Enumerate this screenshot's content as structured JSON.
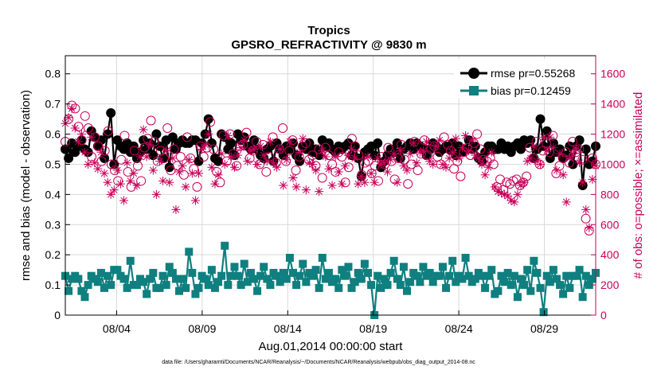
{
  "chart_data": {
    "type": "line",
    "title": "Tropics",
    "subtitle": "GPSRO_REFRACTIVITY @ 9830 m",
    "xlabel": "Aug.01,2014 00:00:00 start",
    "ylabel": "rmse and bias (model - observation)",
    "ylabel_right": "# of obs: o=possible; ×=assimilated",
    "xlim": [
      1.0,
      32.0
    ],
    "ylim": [
      0,
      0.86
    ],
    "ylim_right": [
      0,
      1720
    ],
    "x_ticks": [
      {
        "value": 4,
        "label": "08/04"
      },
      {
        "value": 9,
        "label": "08/09"
      },
      {
        "value": 14,
        "label": "08/14"
      },
      {
        "value": 19,
        "label": "08/19"
      },
      {
        "value": 24,
        "label": "08/24"
      },
      {
        "value": 29,
        "label": "08/29"
      }
    ],
    "y_ticks": [
      "0",
      "0.1",
      "0.2",
      "0.3",
      "0.4",
      "0.5",
      "0.6",
      "0.7",
      "0.8"
    ],
    "y_ticks_right": [
      "0",
      "200",
      "400",
      "600",
      "800",
      "1000",
      "1200",
      "1400",
      "1600"
    ],
    "grid": true,
    "legend_position": "top-right",
    "series": [
      {
        "name": "rmse pr=0.55268",
        "color": "#000000",
        "marker": "circle",
        "axis": "left",
        "values": [
          0.55,
          0.52,
          0.57,
          0.54,
          0.56,
          0.58,
          0.55,
          0.54,
          0.61,
          0.59,
          0.56,
          0.58,
          0.52,
          0.6,
          0.67,
          0.5,
          0.58,
          0.56,
          0.55,
          0.57,
          0.54,
          0.56,
          0.52,
          0.54,
          0.58,
          0.55,
          0.57,
          0.53,
          0.6,
          0.56,
          0.52,
          0.58,
          0.49,
          0.59,
          0.55,
          0.57,
          0.58,
          0.57,
          0.57,
          0.58,
          0.58,
          0.51,
          0.57,
          0.6,
          0.65,
          0.57,
          0.52,
          0.51,
          0.6,
          0.59,
          0.55,
          0.57,
          0.53,
          0.6,
          0.58,
          0.59,
          0.56,
          0.55,
          0.58,
          0.55,
          0.53,
          0.52,
          0.55,
          0.56,
          0.51,
          0.57,
          0.55,
          0.53,
          0.56,
          0.55,
          0.57,
          0.53,
          0.51,
          0.56,
          0.55,
          0.57,
          0.54,
          0.55,
          0.53,
          0.58,
          0.56,
          0.57,
          0.55,
          0.54,
          0.56,
          0.55,
          0.56,
          0.57,
          0.53,
          0.56,
          0.52,
          0.46,
          0.54,
          0.55,
          0.56,
          0.53,
          0.57,
          0.49,
          0.51,
          0.53,
          0.55,
          0.54,
          0.57,
          0.52,
          0.55,
          0.56,
          0.57,
          0.55,
          0.57,
          0.56,
          0.55,
          0.53,
          0.55,
          0.57,
          0.56,
          0.54,
          0.55,
          0.56,
          0.55,
          0.57,
          0.53,
          0.56,
          0.54,
          0.55,
          0.58,
          0.55,
          0.56,
          0.52,
          0.51,
          0.54,
          0.56,
          0.56,
          0.55,
          0.55,
          0.57,
          0.55,
          0.56,
          0.54,
          0.56,
          0.57,
          0.55,
          0.58,
          0.57,
          0.58,
          0.52,
          0.55,
          0.65,
          0.56,
          0.61,
          0.52,
          0.57,
          0.54,
          0.55,
          0.52,
          0.53,
          0.56,
          0.5,
          0.56,
          0.58,
          0.43,
          0.55,
          0.5,
          0.51,
          0.56
        ]
      },
      {
        "name": "bias pr=0.12459",
        "color": "#0f7f7f",
        "marker": "square",
        "axis": "left",
        "values": [
          0.13,
          0.08,
          0.12,
          0.13,
          0.12,
          0.08,
          0.06,
          0.1,
          0.13,
          0.12,
          0.11,
          0.14,
          0.09,
          0.13,
          0.1,
          0.15,
          0.15,
          0.13,
          0.12,
          0.09,
          0.18,
          0.1,
          0.1,
          0.12,
          0.11,
          0.07,
          0.12,
          0.14,
          0.09,
          0.09,
          0.13,
          0.1,
          0.16,
          0.14,
          0.12,
          0.08,
          0.12,
          0.09,
          0.21,
          0.14,
          0.07,
          0.09,
          0.13,
          0.12,
          0.1,
          0.15,
          0.09,
          0.11,
          0.13,
          0.23,
          0.1,
          0.13,
          0.16,
          0.13,
          0.1,
          0.17,
          0.11,
          0.14,
          0.12,
          0.08,
          0.13,
          0.16,
          0.12,
          0.1,
          0.14,
          0.13,
          0.11,
          0.14,
          0.12,
          0.19,
          0.14,
          0.1,
          0.13,
          0.17,
          0.11,
          0.14,
          0.13,
          0.15,
          0.09,
          0.19,
          0.12,
          0.14,
          0.11,
          0.12,
          0.09,
          0.15,
          0.13,
          0.16,
          0.09,
          0.11,
          0.14,
          0.12,
          0.17,
          0.14,
          0.1,
          0.0,
          0.13,
          0.09,
          0.12,
          0.1,
          0.14,
          0.18,
          0.12,
          0.1,
          0.16,
          0.08,
          0.11,
          0.14,
          0.13,
          0.11,
          0.16,
          0.13,
          0.14,
          0.11,
          0.13,
          0.13,
          0.16,
          0.09,
          0.13,
          0.18,
          0.11,
          0.13,
          0.12,
          0.19,
          0.13,
          0.11,
          0.12,
          0.14,
          0.13,
          0.09,
          0.13,
          0.15,
          0.07,
          0.08,
          0.13,
          0.11,
          0.14,
          0.1,
          0.13,
          0.06,
          0.12,
          0.1,
          0.15,
          0.08,
          0.18,
          0.14,
          0.09,
          0.01,
          0.13,
          0.11,
          0.15,
          0.12,
          0.1,
          0.07,
          0.13,
          0.09,
          0.13,
          0.13,
          0.15,
          0.06,
          0.13,
          0.1,
          0.12,
          0.14
        ]
      },
      {
        "name": "# obs possible",
        "color": "#c8005a",
        "marker": "open-circle",
        "axis": "right",
        "values": [
          1150,
          1300,
          1390,
          1370,
          1250,
          1160,
          1320,
          1240,
          1050,
          1180,
          1120,
          1020,
          1090,
          1220,
          1000,
          960,
          890,
          1030,
          1190,
          950,
          850,
          1090,
          990,
          890,
          1110,
          1170,
          1290,
          1150,
          1020,
          1090,
          1040,
          1240,
          960,
          1100,
          990,
          1050,
          930,
          1180,
          1040,
          970,
          850,
          1120,
          1050,
          1110,
          1280,
          1100,
          950,
          880,
          1190,
          1020,
          1200,
          1070,
          990,
          1120,
          1130,
          1210,
          1040,
          1090,
          1150,
          1000,
          1130,
          950,
          1050,
          1180,
          1010,
          1100,
          1240,
          1020,
          1090,
          1160,
          960,
          1050,
          1120,
          1140,
          1030,
          1060,
          990,
          1100,
          910,
          1110,
          1060,
          1000,
          950,
          1080,
          1050,
          880,
          980,
          1170,
          1120,
          1060,
          930,
          1010,
          1020,
          940,
          990,
          890,
          1050,
          1000,
          1110,
          1020,
          900,
          1040,
          1130,
          1030,
          870,
          1000,
          1150,
          960,
          1070,
          1160,
          1060,
          1100,
          1120,
          1050,
          1000,
          1180,
          1130,
          1090,
          970,
          1020,
          920,
          1080,
          1110,
          1060,
          1140,
          1200,
          1100,
          1030,
          1020,
          1040,
          1000,
          850,
          900,
          830,
          880,
          870,
          890,
          900,
          860,
          880,
          920,
          1110,
          1040,
          1150,
          1000,
          1090,
          1140,
          1080,
          1190,
          940,
          990,
          1040,
          1080,
          1010,
          1150,
          1080,
          1100,
          1030,
          640,
          560,
          1040,
          1000
        ]
      },
      {
        "name": "# obs assimilated",
        "color": "#c8005a",
        "marker": "asterisk",
        "axis": "right",
        "values": [
          1270,
          1310,
          1370,
          1240,
          1150,
          1200,
          1080,
          1000,
          1180,
          1010,
          970,
          1080,
          940,
          880,
          800,
          830,
          960,
          870,
          760,
          1010,
          890,
          940,
          860,
          1050,
          1230,
          1050,
          1130,
          960,
          800,
          1020,
          890,
          1090,
          880,
          1040,
          700,
          950,
          990,
          850,
          1030,
          940,
          760,
          940,
          1100,
          1130,
          1200,
          980,
          870,
          930,
          1070,
          1000,
          1190,
          1050,
          980,
          1060,
          1110,
          1160,
          1020,
          1090,
          1100,
          1000,
          1120,
          1060,
          1020,
          1150,
          1010,
          980,
          1100,
          860,
          1030,
          1150,
          910,
          850,
          1080,
          1170,
          830,
          1010,
          1000,
          960,
          820,
          1090,
          1050,
          970,
          860,
          1050,
          950,
          870,
          990,
          1060,
          1100,
          1040,
          870,
          920,
          880,
          1050,
          940,
          880,
          1040,
          1000,
          1010,
          950,
          1030,
          1070,
          880,
          1090,
          990,
          960,
          1070,
          1140,
          1010,
          1080,
          1090,
          1150,
          1020,
          1000,
          1120,
          1160,
          1000,
          980,
          1040,
          1080,
          1170,
          1040,
          1110,
          1190,
          1090,
          1160,
          1060,
          1040,
          1000,
          930,
          980,
          1080,
          850,
          820,
          810,
          800,
          790,
          760,
          750,
          800,
          860,
          880,
          1020,
          1040,
          1120,
          1020,
          1000,
          1180,
          1090,
          1180,
          1110,
          960,
          1070,
          930,
          750,
          1040,
          1070,
          1100,
          1010,
          880,
          700,
          580,
          900,
          990
        ]
      }
    ],
    "footnote": "data file: /Users/gharamti/Documents/NCAR/Reanalysis/~/Documents/NCAR/Reanalysis/webpub/obs_diag_output_2014-08.nc"
  }
}
